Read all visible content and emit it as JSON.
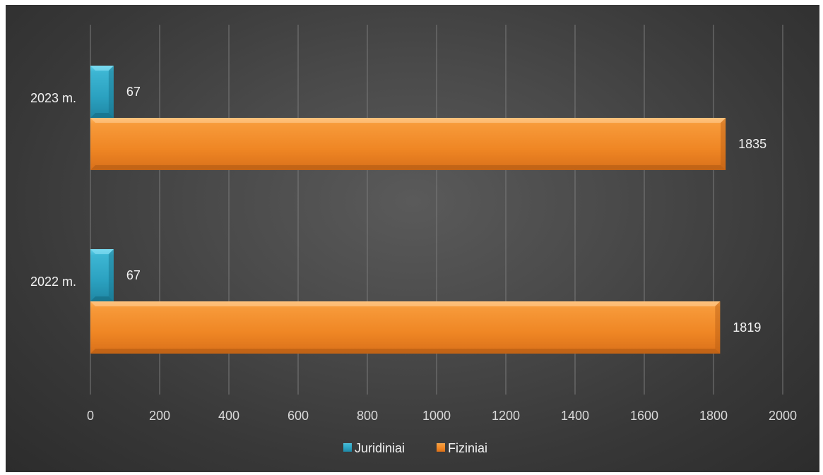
{
  "chart_data": {
    "type": "bar",
    "orientation": "horizontal",
    "categories": [
      "2023 m.",
      "2022 m."
    ],
    "series": [
      {
        "name": "Juridiniai",
        "values": [
          67,
          67
        ],
        "color": "#2fa6c4"
      },
      {
        "name": "Fiziniai",
        "values": [
          1835,
          1819
        ],
        "color": "#f08a24"
      }
    ],
    "xlim": [
      0,
      2000
    ],
    "x_ticks": [
      "0",
      "200",
      "400",
      "600",
      "800",
      "1000",
      "1200",
      "1400",
      "1600",
      "1800",
      "2000"
    ],
    "grid": "vertical",
    "legend_position": "bottom",
    "background": "#3f3f3f",
    "title": "",
    "xlabel": "",
    "ylabel": ""
  }
}
